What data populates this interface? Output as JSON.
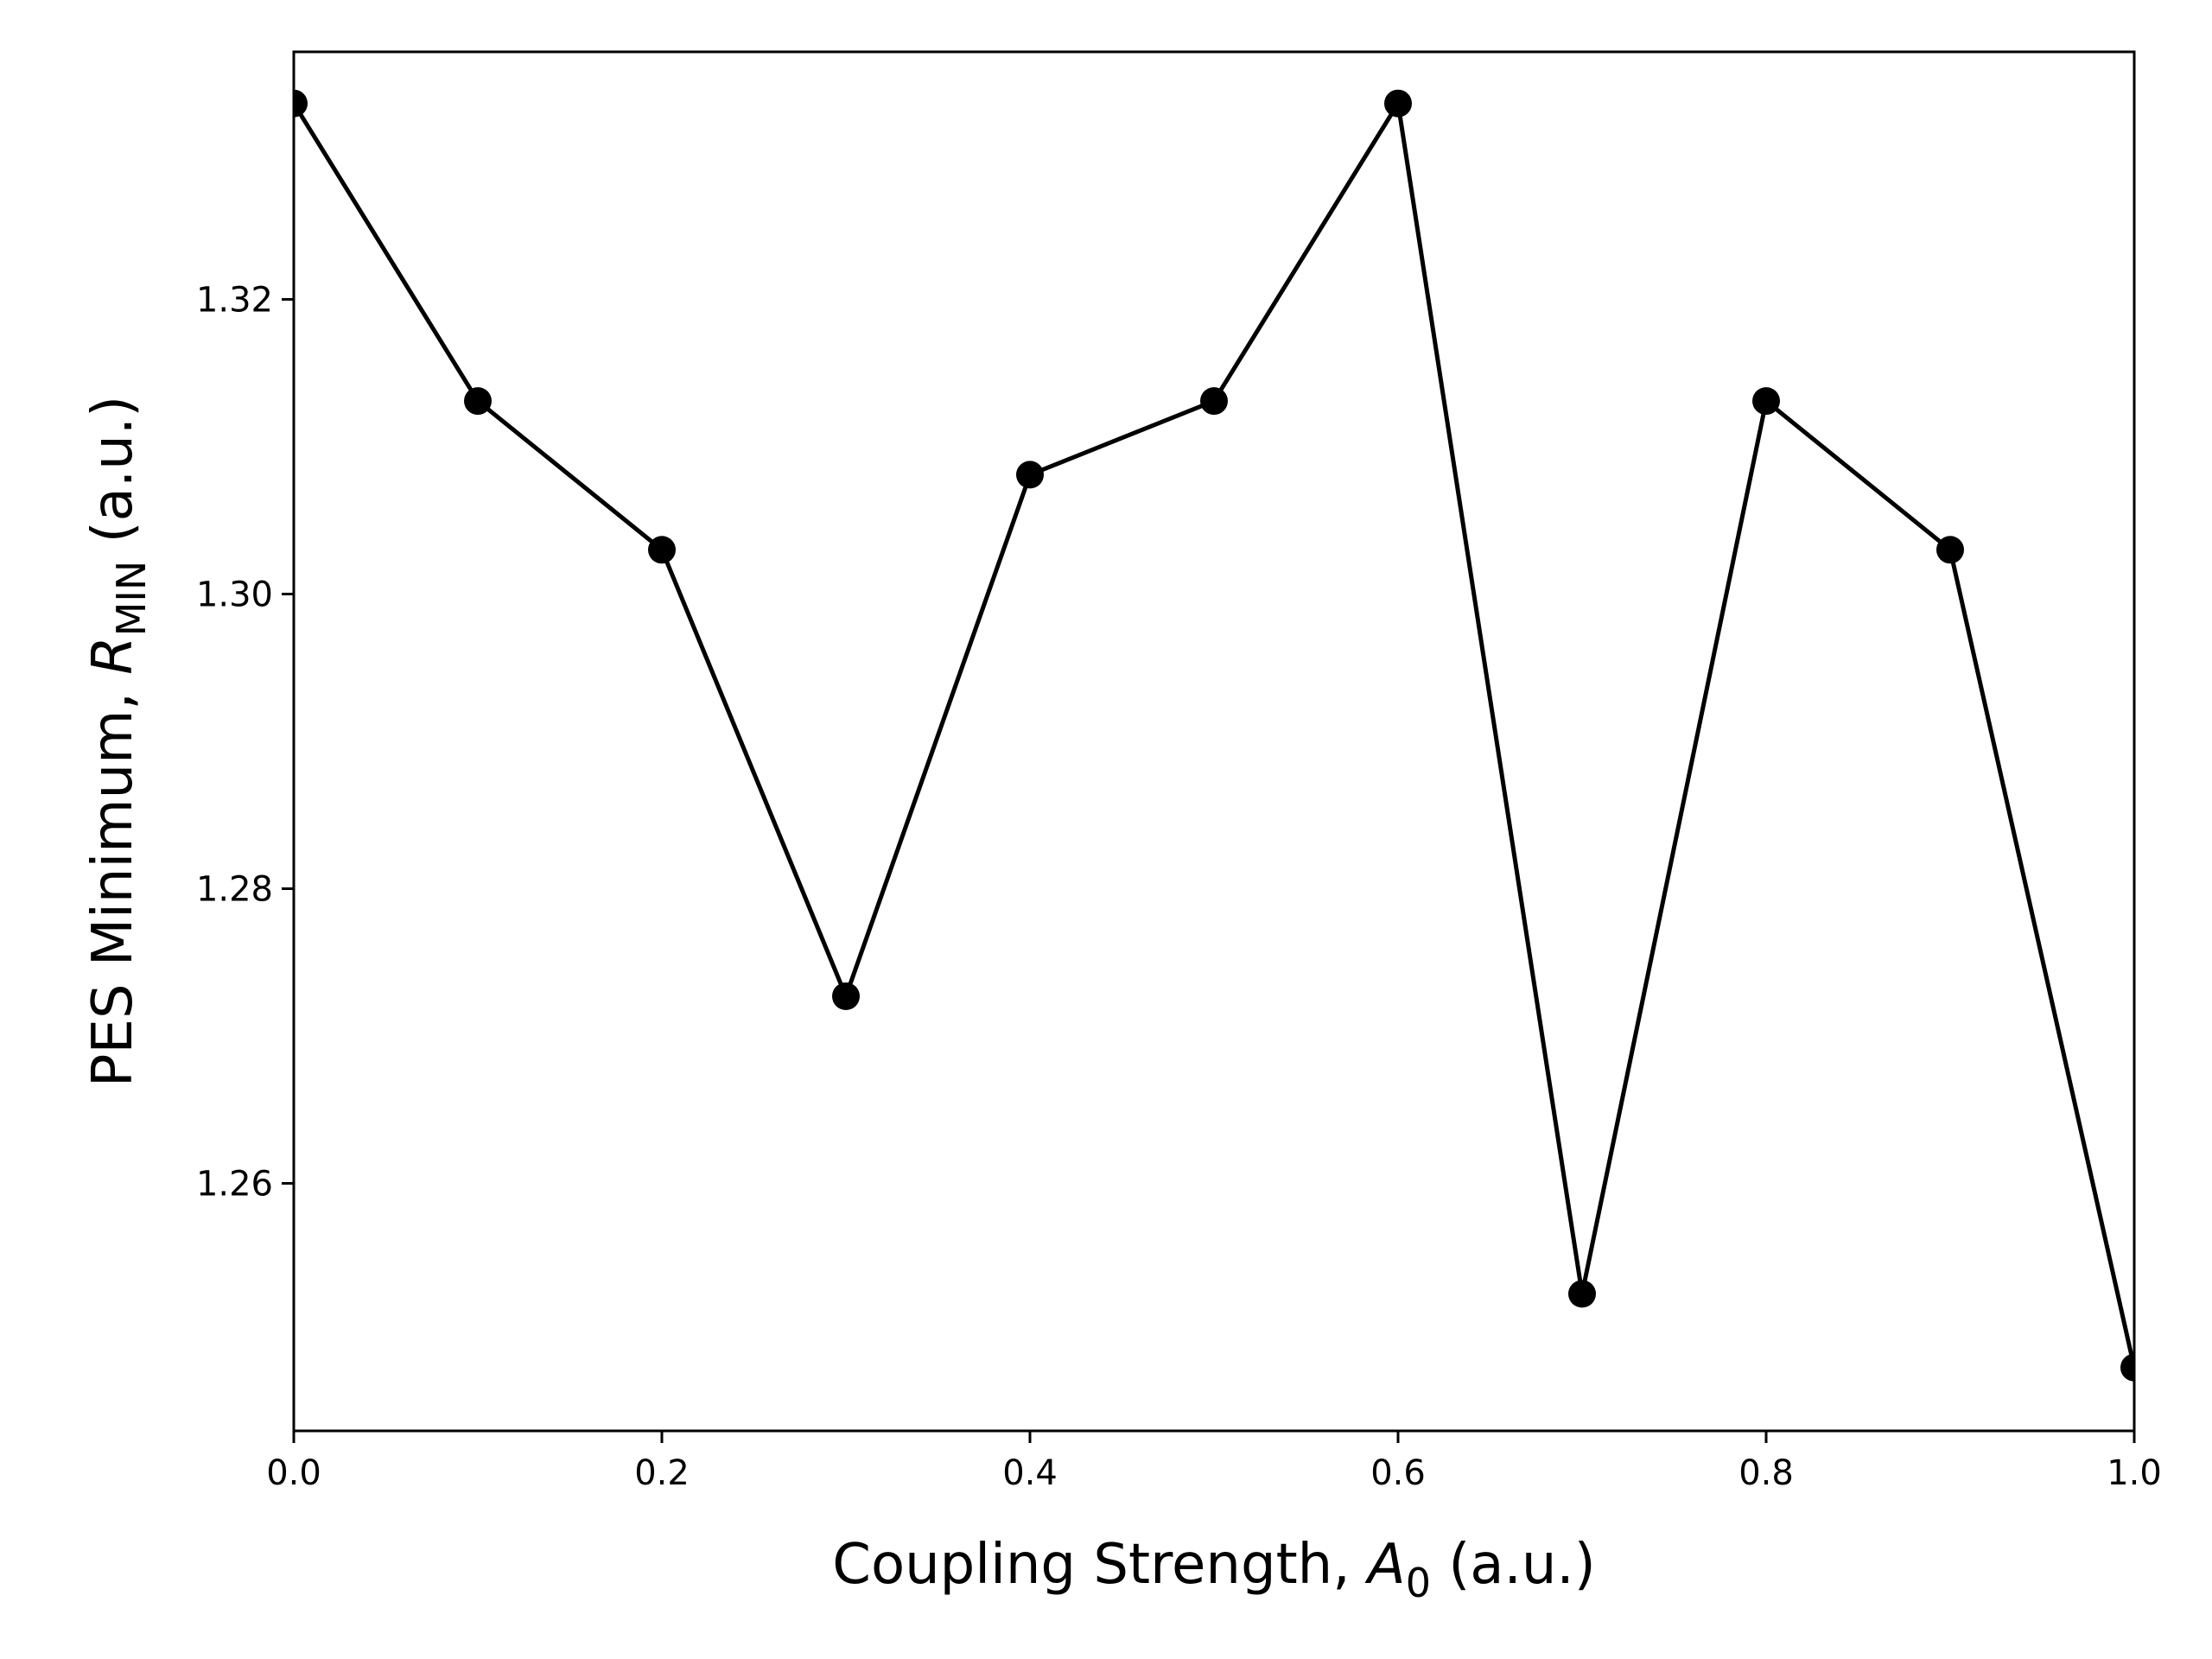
{
  "chart_data": {
    "type": "line",
    "title": "",
    "xlabel": {
      "prefix": "Coupling Strength, ",
      "symbol": "A",
      "subscript": "0",
      "suffix": " (a.u.)"
    },
    "ylabel": {
      "prefix": "PES Minimum, ",
      "symbol": "R",
      "subscript": "MIN",
      "suffix": " (a.u.)"
    },
    "xlim": [
      0.0,
      1.0
    ],
    "ylim": [
      1.2432,
      1.3368
    ],
    "xticks": [
      "0.0",
      "0.2",
      "0.4",
      "0.6",
      "0.8",
      "1.0"
    ],
    "yticks": [
      "1.26",
      "1.28",
      "1.30",
      "1.32"
    ],
    "grid": false,
    "series": [
      {
        "name": "R_MIN",
        "color": "#000000",
        "marker": "circle",
        "x": [
          0.0,
          0.1,
          0.2,
          0.3,
          0.4,
          0.5,
          0.6,
          0.7,
          0.8,
          0.9,
          1.0
        ],
        "y": [
          1.3333,
          1.3131,
          1.303,
          1.2727,
          1.3081,
          1.3131,
          1.3333,
          1.2525,
          1.3131,
          1.303,
          1.2475
        ]
      }
    ]
  }
}
